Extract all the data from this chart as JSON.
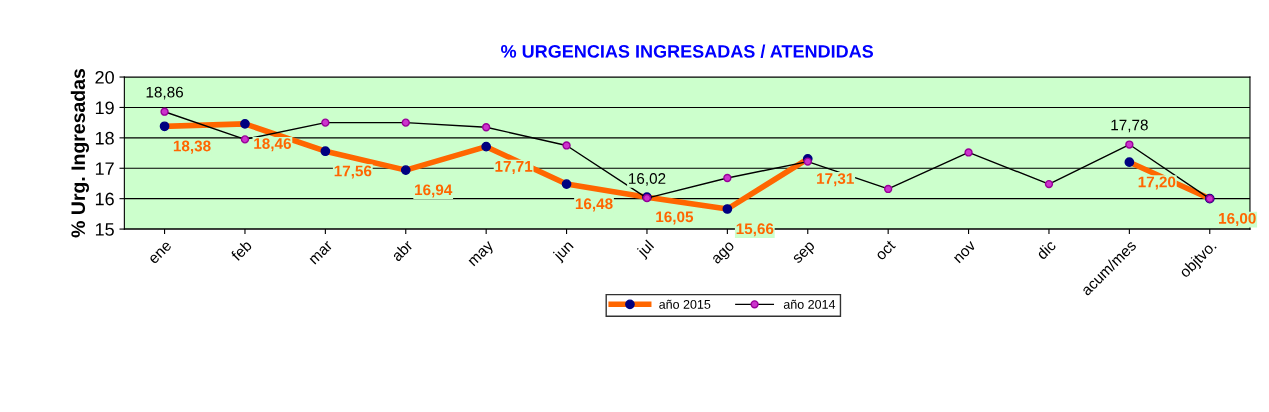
{
  "chart_data": {
    "type": "line",
    "title": "% URGENCIAS INGRESADAS / ATENDIDAS",
    "ylabel": "% Urg. Ingresadas",
    "categories": [
      "ene",
      "feb",
      "mar",
      "abr",
      "may",
      "jun",
      "jul",
      "ago",
      "sep",
      "oct",
      "nov",
      "dic",
      "acum/mes",
      "objtvo."
    ],
    "series": [
      {
        "name": "año 2015",
        "color": "#ff6600",
        "values": [
          18.38,
          18.46,
          17.56,
          16.94,
          17.71,
          16.48,
          16.05,
          15.66,
          17.31,
          null,
          null,
          null,
          17.2,
          16.0
        ],
        "value_labels": [
          "18,38",
          "18,46",
          "17,56",
          "16,94",
          "17,71",
          "16,48",
          "16,05",
          "15,66",
          "17,31",
          null,
          null,
          null,
          "17,20",
          "16,00"
        ]
      },
      {
        "name": "año 2014",
        "color": "#000000",
        "values": [
          18.86,
          17.95,
          18.5,
          18.5,
          18.35,
          17.75,
          16.02,
          16.68,
          17.22,
          16.32,
          17.52,
          16.48,
          17.78,
          16.0
        ],
        "value_labels": [
          "18,86",
          null,
          null,
          null,
          null,
          null,
          "16,02",
          null,
          null,
          null,
          null,
          null,
          "17,78",
          null
        ]
      }
    ],
    "ylim": [
      15,
      20
    ],
    "yticks": [
      15,
      16,
      17,
      18,
      19,
      20
    ],
    "grid": "y",
    "legend": "bottom",
    "marker": "circle",
    "line_style": "solid"
  }
}
